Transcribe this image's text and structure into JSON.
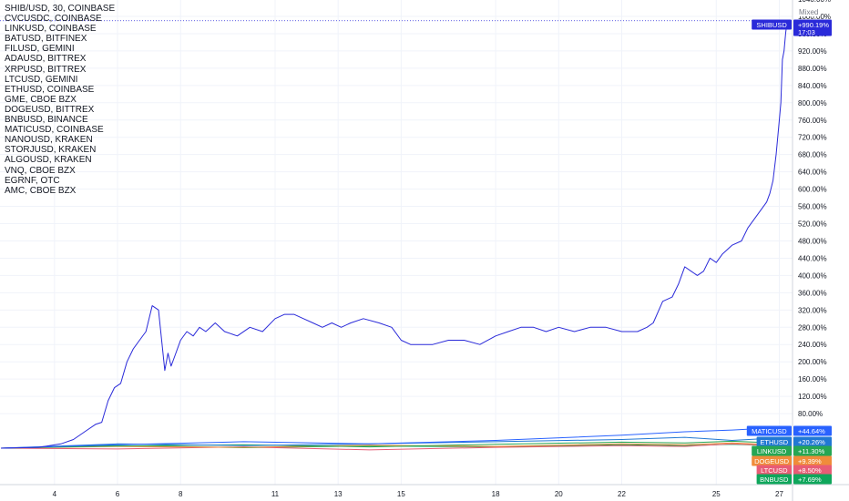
{
  "legend": [
    "SHIB/USD, 30, COINBASE",
    "CVCUSDC, COINBASE",
    "LINKUSD, COINBASE",
    "BATUSD, BITFINEX",
    "FILUSD, GEMINI",
    "ADAUSD, BITTREX",
    "XRPUSD, BITTREX",
    "LTCUSD, GEMINI",
    "ETHUSD, COINBASE",
    "GME, CBOE BZX",
    "DOGEUSD, BITTREX",
    "BNBUSD, BINANCE",
    "MATICUSD, COINBASE",
    "NANOUSD, KRAKEN",
    "STORJUSD, KRAKEN",
    "ALGOUSD, KRAKEN",
    "VNQ, CBOE BZX",
    "EGRNF, OTC",
    "AMC, CBOE BZX"
  ],
  "scale_mode": "Mixed",
  "chart_data": {
    "type": "line",
    "y_unit": "%",
    "ylim": [
      -20,
      1040
    ],
    "y_ticks": [
      "1040.00%",
      "1000.00%",
      "960.00%",
      "920.00%",
      "880.00%",
      "840.00%",
      "800.00%",
      "760.00%",
      "720.00%",
      "680.00%",
      "640.00%",
      "600.00%",
      "560.00%",
      "520.00%",
      "480.00%",
      "440.00%",
      "400.00%",
      "360.00%",
      "320.00%",
      "280.00%",
      "240.00%",
      "200.00%",
      "160.00%",
      "120.00%",
      "80.00%"
    ],
    "y_tick_values": [
      1040,
      1000,
      960,
      920,
      880,
      840,
      800,
      760,
      720,
      680,
      640,
      600,
      560,
      520,
      480,
      440,
      400,
      360,
      320,
      280,
      240,
      200,
      160,
      120,
      80
    ],
    "x_ticks": [
      {
        "label": "4",
        "day": 4
      },
      {
        "label": "6",
        "day": 6
      },
      {
        "label": "8",
        "day": 8
      },
      {
        "label": "11",
        "day": 11
      },
      {
        "label": "13",
        "day": 13
      },
      {
        "label": "15",
        "day": 15
      },
      {
        "label": "18",
        "day": 18
      },
      {
        "label": "20",
        "day": 20
      },
      {
        "label": "22",
        "day": 22
      },
      {
        "label": "25",
        "day": 25
      },
      {
        "label": "27",
        "day": 27
      }
    ],
    "xlim": [
      2.27,
      27.42
    ],
    "grid": true,
    "series": [
      {
        "name": "SHIBUSD",
        "color": "#2a2ad9",
        "x": [
          2.3,
          3.5,
          4.2,
          4.6,
          5.0,
          5.3,
          5.5,
          5.7,
          5.9,
          6.1,
          6.3,
          6.5,
          6.7,
          6.9,
          7.1,
          7.3,
          7.5,
          7.6,
          7.7,
          7.8,
          8.0,
          8.2,
          8.4,
          8.6,
          8.8,
          9.1,
          9.4,
          9.8,
          10.2,
          10.6,
          11.0,
          11.3,
          11.6,
          11.9,
          12.2,
          12.5,
          12.8,
          13.1,
          13.4,
          13.8,
          14.3,
          14.7,
          15.0,
          15.3,
          15.6,
          16.0,
          16.5,
          17.0,
          17.5,
          18.0,
          18.4,
          18.8,
          19.2,
          19.6,
          20.0,
          20.5,
          21.0,
          21.5,
          22.0,
          22.5,
          22.8,
          23.0,
          23.3,
          23.6,
          23.8,
          24.0,
          24.2,
          24.4,
          24.6,
          24.8,
          25.0,
          25.2,
          25.5,
          25.8,
          26.0,
          26.2,
          26.4,
          26.6,
          26.7,
          26.8,
          26.9,
          27.0,
          27.05,
          27.1,
          27.15,
          27.2,
          27.25
        ],
        "values": [
          0,
          2,
          10,
          20,
          40,
          55,
          60,
          110,
          140,
          150,
          200,
          230,
          250,
          270,
          330,
          320,
          180,
          220,
          190,
          210,
          250,
          270,
          260,
          280,
          270,
          290,
          270,
          260,
          280,
          270,
          300,
          310,
          310,
          300,
          290,
          280,
          290,
          280,
          290,
          300,
          290,
          280,
          250,
          240,
          240,
          240,
          250,
          250,
          240,
          260,
          270,
          280,
          280,
          270,
          280,
          270,
          280,
          280,
          270,
          270,
          280,
          290,
          340,
          350,
          380,
          420,
          410,
          400,
          410,
          440,
          430,
          450,
          470,
          480,
          510,
          530,
          550,
          570,
          590,
          620,
          680,
          760,
          800,
          900,
          920,
          960,
          990
        ]
      },
      {
        "name": "MATICUSD",
        "color": "#2962ff",
        "x": [
          2.3,
          6,
          10,
          14,
          18,
          22,
          24,
          25.5,
          26.5,
          27.3
        ],
        "values": [
          0,
          8,
          15,
          10,
          18,
          30,
          38,
          42,
          46,
          44.6
        ]
      },
      {
        "name": "ETHUSD",
        "color": "#2178d3",
        "x": [
          2.3,
          6,
          10,
          14,
          18,
          22,
          24,
          25.5,
          26.5,
          27.3
        ],
        "values": [
          0,
          10,
          6,
          10,
          15,
          20,
          25,
          18,
          22,
          20.3
        ]
      },
      {
        "name": "LINKUSD",
        "color": "#26a653",
        "x": [
          2.3,
          6,
          10,
          14,
          18,
          22,
          24,
          25.5,
          26.5,
          27.3
        ],
        "values": [
          0,
          5,
          8,
          3,
          9,
          14,
          12,
          16,
          13,
          11.3
        ]
      },
      {
        "name": "DOGEUSD",
        "color": "#f08c3a",
        "x": [
          2.3,
          6,
          10,
          14,
          18,
          22,
          24,
          25.5,
          26.5,
          27.3
        ],
        "values": [
          0,
          4,
          2,
          7,
          4,
          10,
          8,
          12,
          9,
          9.4
        ]
      },
      {
        "name": "LTCUSD",
        "color": "#e85c75",
        "x": [
          2.3,
          6,
          10,
          14,
          18,
          22,
          24,
          25.5,
          26.5,
          27.3
        ],
        "values": [
          0,
          -2,
          3,
          -4,
          2,
          6,
          4,
          10,
          7,
          8.5
        ]
      },
      {
        "name": "BNBUSD",
        "color": "#0fa65b",
        "x": [
          2.3,
          6,
          10,
          14,
          18,
          22,
          24,
          25.5,
          26.5,
          27.3
        ],
        "values": [
          0,
          6,
          1,
          5,
          3,
          8,
          6,
          9,
          7,
          7.7
        ]
      }
    ],
    "price_labels": [
      {
        "series": "SHIBUSD",
        "text": "+990.19%",
        "color": "#2a2ad9",
        "extra": "17:03"
      },
      {
        "series": "MATICUSD",
        "text": "+44.64%",
        "color": "#2962ff"
      },
      {
        "series": "ETHUSD",
        "text": "+20.26%",
        "color": "#2178d3"
      },
      {
        "series": "LINKUSD",
        "text": "+11.30%",
        "color": "#26a653"
      },
      {
        "series": "DOGEUSD",
        "text": "+9.39%",
        "color": "#f08c3a"
      },
      {
        "series": "LTCUSD",
        "text": "+8.50%",
        "color": "#e85c75"
      },
      {
        "series": "BNBUSD",
        "text": "+7.69%",
        "color": "#0fa65b"
      }
    ]
  }
}
